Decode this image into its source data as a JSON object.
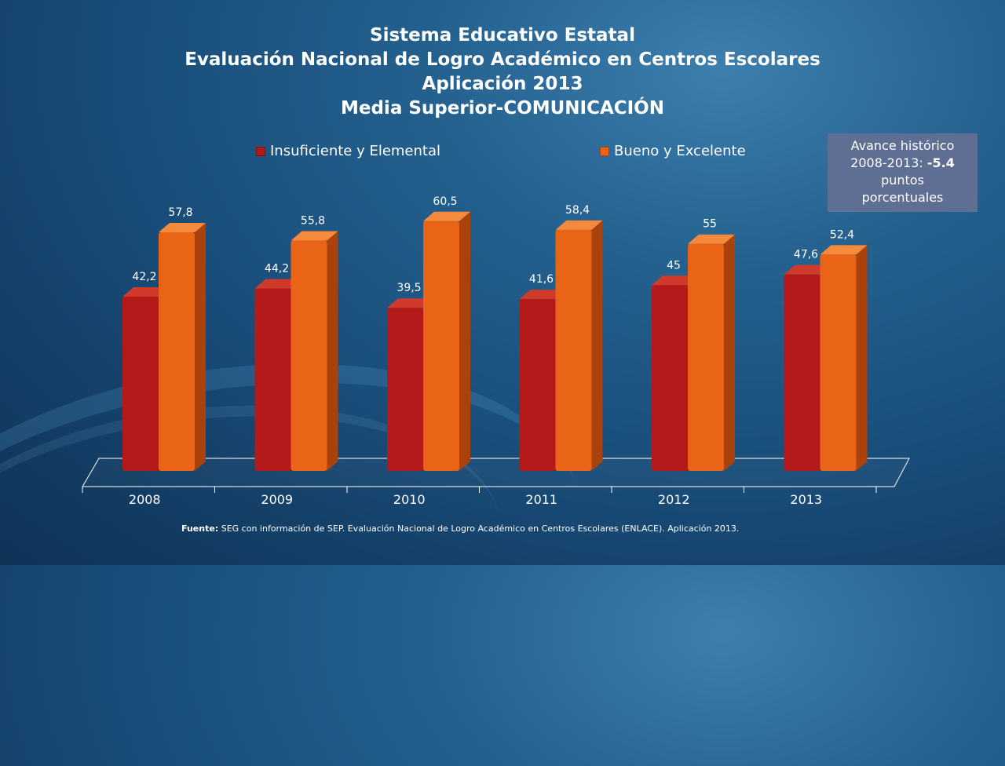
{
  "title": {
    "line1": "Sistema Educativo Estatal",
    "line2": "Evaluación Nacional de Logro Académico en Centros Escolares",
    "line3": "Aplicación 2013",
    "line4": "Media Superior-COMUNICACIÓN"
  },
  "note": {
    "line1": "Avance histórico",
    "line2_prefix": "2008-2013:",
    "line2_value": "-5.4",
    "line3": "puntos",
    "line4": "porcentuales"
  },
  "source": {
    "label": "Fuente:",
    "text": "SEG con información de SEP. Evaluación Nacional de Logro Académico en Centros Escolares (ENLACE). Aplicación 2013."
  },
  "colors": {
    "series1": "#b51a1a",
    "series2": "#ea6418"
  },
  "chart_data": {
    "type": "bar",
    "categories": [
      "2008",
      "2009",
      "2010",
      "2011",
      "2012",
      "2013"
    ],
    "series": [
      {
        "name": "Insuficiente y Elemental",
        "values": [
          42.2,
          44.2,
          39.5,
          41.6,
          45,
          47.6
        ],
        "labels": [
          "42,2",
          "44,2",
          "39,5",
          "41,6",
          "45",
          "47,6"
        ]
      },
      {
        "name": "Bueno y Excelente",
        "values": [
          57.8,
          55.8,
          60.5,
          58.4,
          55,
          52.4
        ],
        "labels": [
          "57,8",
          "55,8",
          "60,5",
          "58,4",
          "55",
          "52,4"
        ]
      }
    ],
    "ylim": [
      0,
      70
    ],
    "grid": false,
    "legend": "top",
    "three_d": true
  }
}
